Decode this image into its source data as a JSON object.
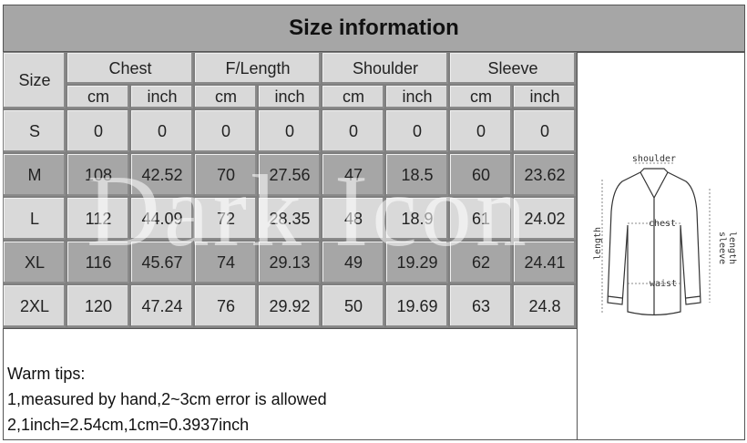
{
  "title": "Size information",
  "table": {
    "size_header": "Size",
    "groups": [
      "Chest",
      "F/Length",
      "Shoulder",
      "Sleeve"
    ],
    "units": [
      "cm",
      "inch"
    ],
    "rows": [
      [
        "S",
        0,
        0,
        0,
        0,
        0,
        0,
        0,
        0
      ],
      [
        "M",
        108,
        42.52,
        70,
        27.56,
        47,
        18.5,
        60,
        23.62
      ],
      [
        "L",
        112,
        44.09,
        72,
        28.35,
        48,
        18.9,
        61,
        24.02
      ],
      [
        "XL",
        116,
        45.67,
        74,
        29.13,
        49,
        19.29,
        62,
        24.41
      ],
      [
        "2XL",
        120,
        47.24,
        76,
        29.92,
        50,
        19.69,
        63,
        24.8
      ]
    ]
  },
  "watermark": "Dark Icon",
  "tips": [
    "Warm tips:",
    "1,measured by hand,2~3cm error is allowed",
    "2,1inch=2.54cm,1cm=0.3937inch"
  ],
  "diagram": {
    "shoulder": "shoulder",
    "chest": "chest",
    "length": "length",
    "sleeve_length": [
      "sleeve",
      "length"
    ],
    "waist": "waist"
  }
}
